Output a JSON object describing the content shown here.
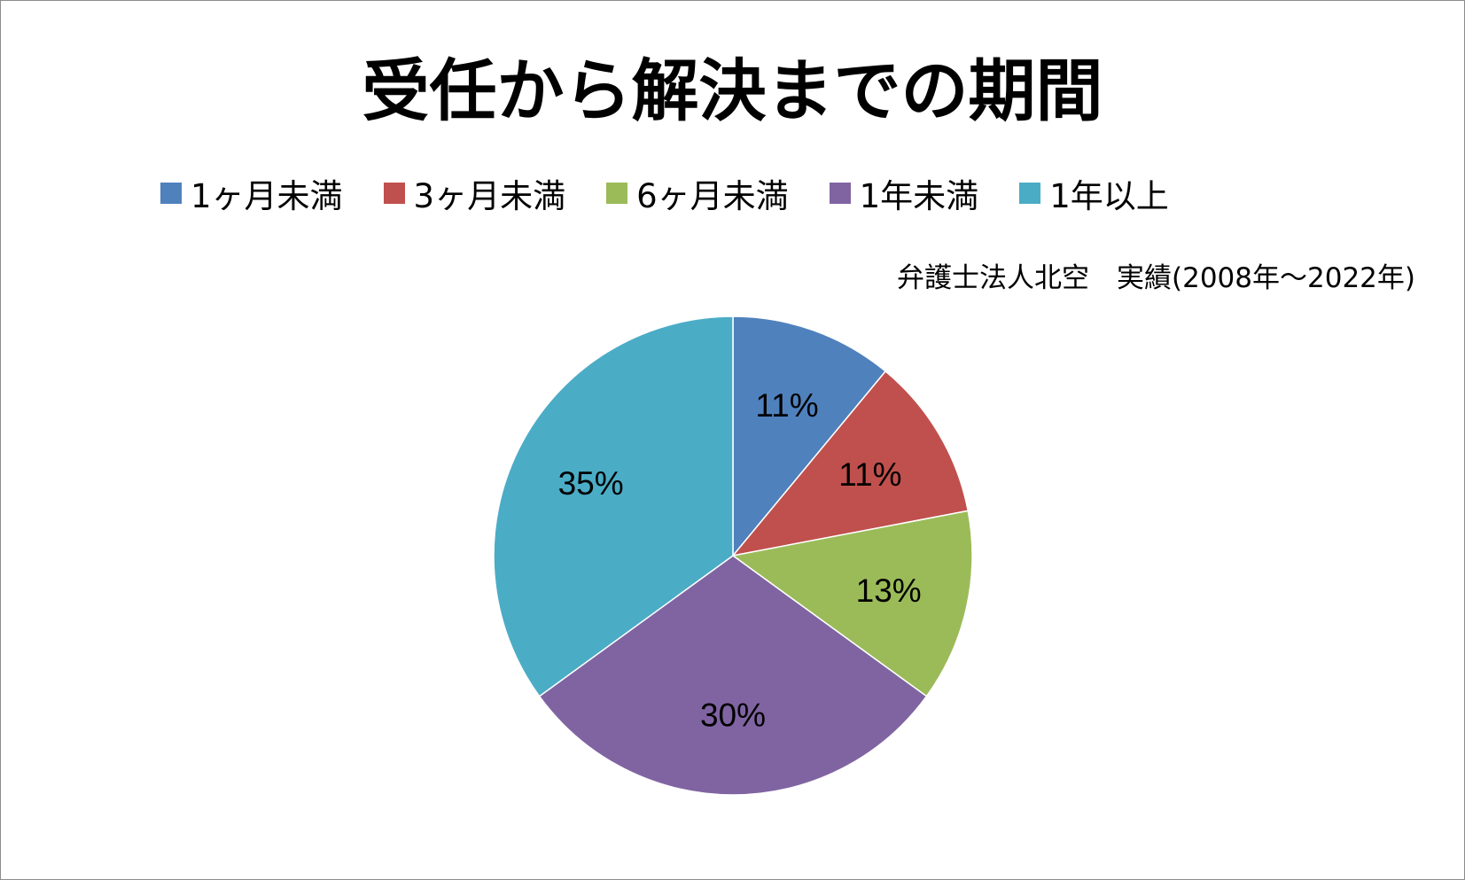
{
  "chart_data": {
    "type": "pie",
    "title": "受任から解決までの期間",
    "subtitle": "弁護士法人北空　実績(2008年～2022年)",
    "legend_position": "top",
    "categories": [
      "1ヶ月未満",
      "3ヶ月未満",
      "6ヶ月未満",
      "1年未満",
      "1年以上"
    ],
    "values": [
      11,
      11,
      13,
      30,
      35
    ],
    "labels": [
      "11%",
      "11%",
      "13%",
      "30%",
      "35%"
    ],
    "colors": [
      "#4f81bd",
      "#c0504d",
      "#9bbb59",
      "#8064a2",
      "#4bacc6"
    ]
  }
}
